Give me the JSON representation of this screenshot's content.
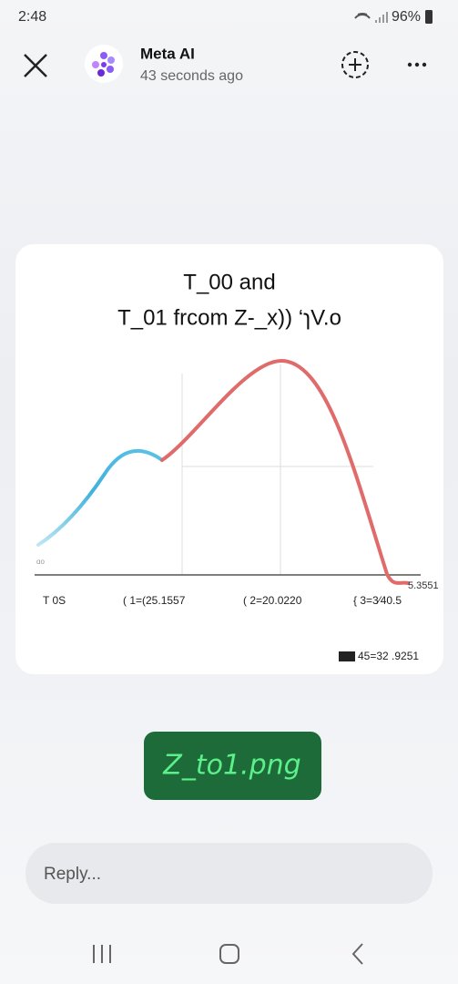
{
  "status_bar": {
    "time": "2:48",
    "battery": "96%"
  },
  "header": {
    "name": "Meta AI",
    "subtitle": "43 seconds ago"
  },
  "image": {
    "title_lines": [
      "T_00 and",
      "T_01 frcom Z-_x)) ‘ɿV.o"
    ],
    "left_label": "ɑo",
    "right_label": "5.3551",
    "x_labels": [
      "T 0S",
      "( 1=(25.1557",
      "( 2=20.0220",
      "{ 3=3⁄40.5"
    ],
    "legend": "45=32 .9251"
  },
  "caption": "Z_to1.png",
  "reply": {
    "placeholder": "Reply..."
  }
}
